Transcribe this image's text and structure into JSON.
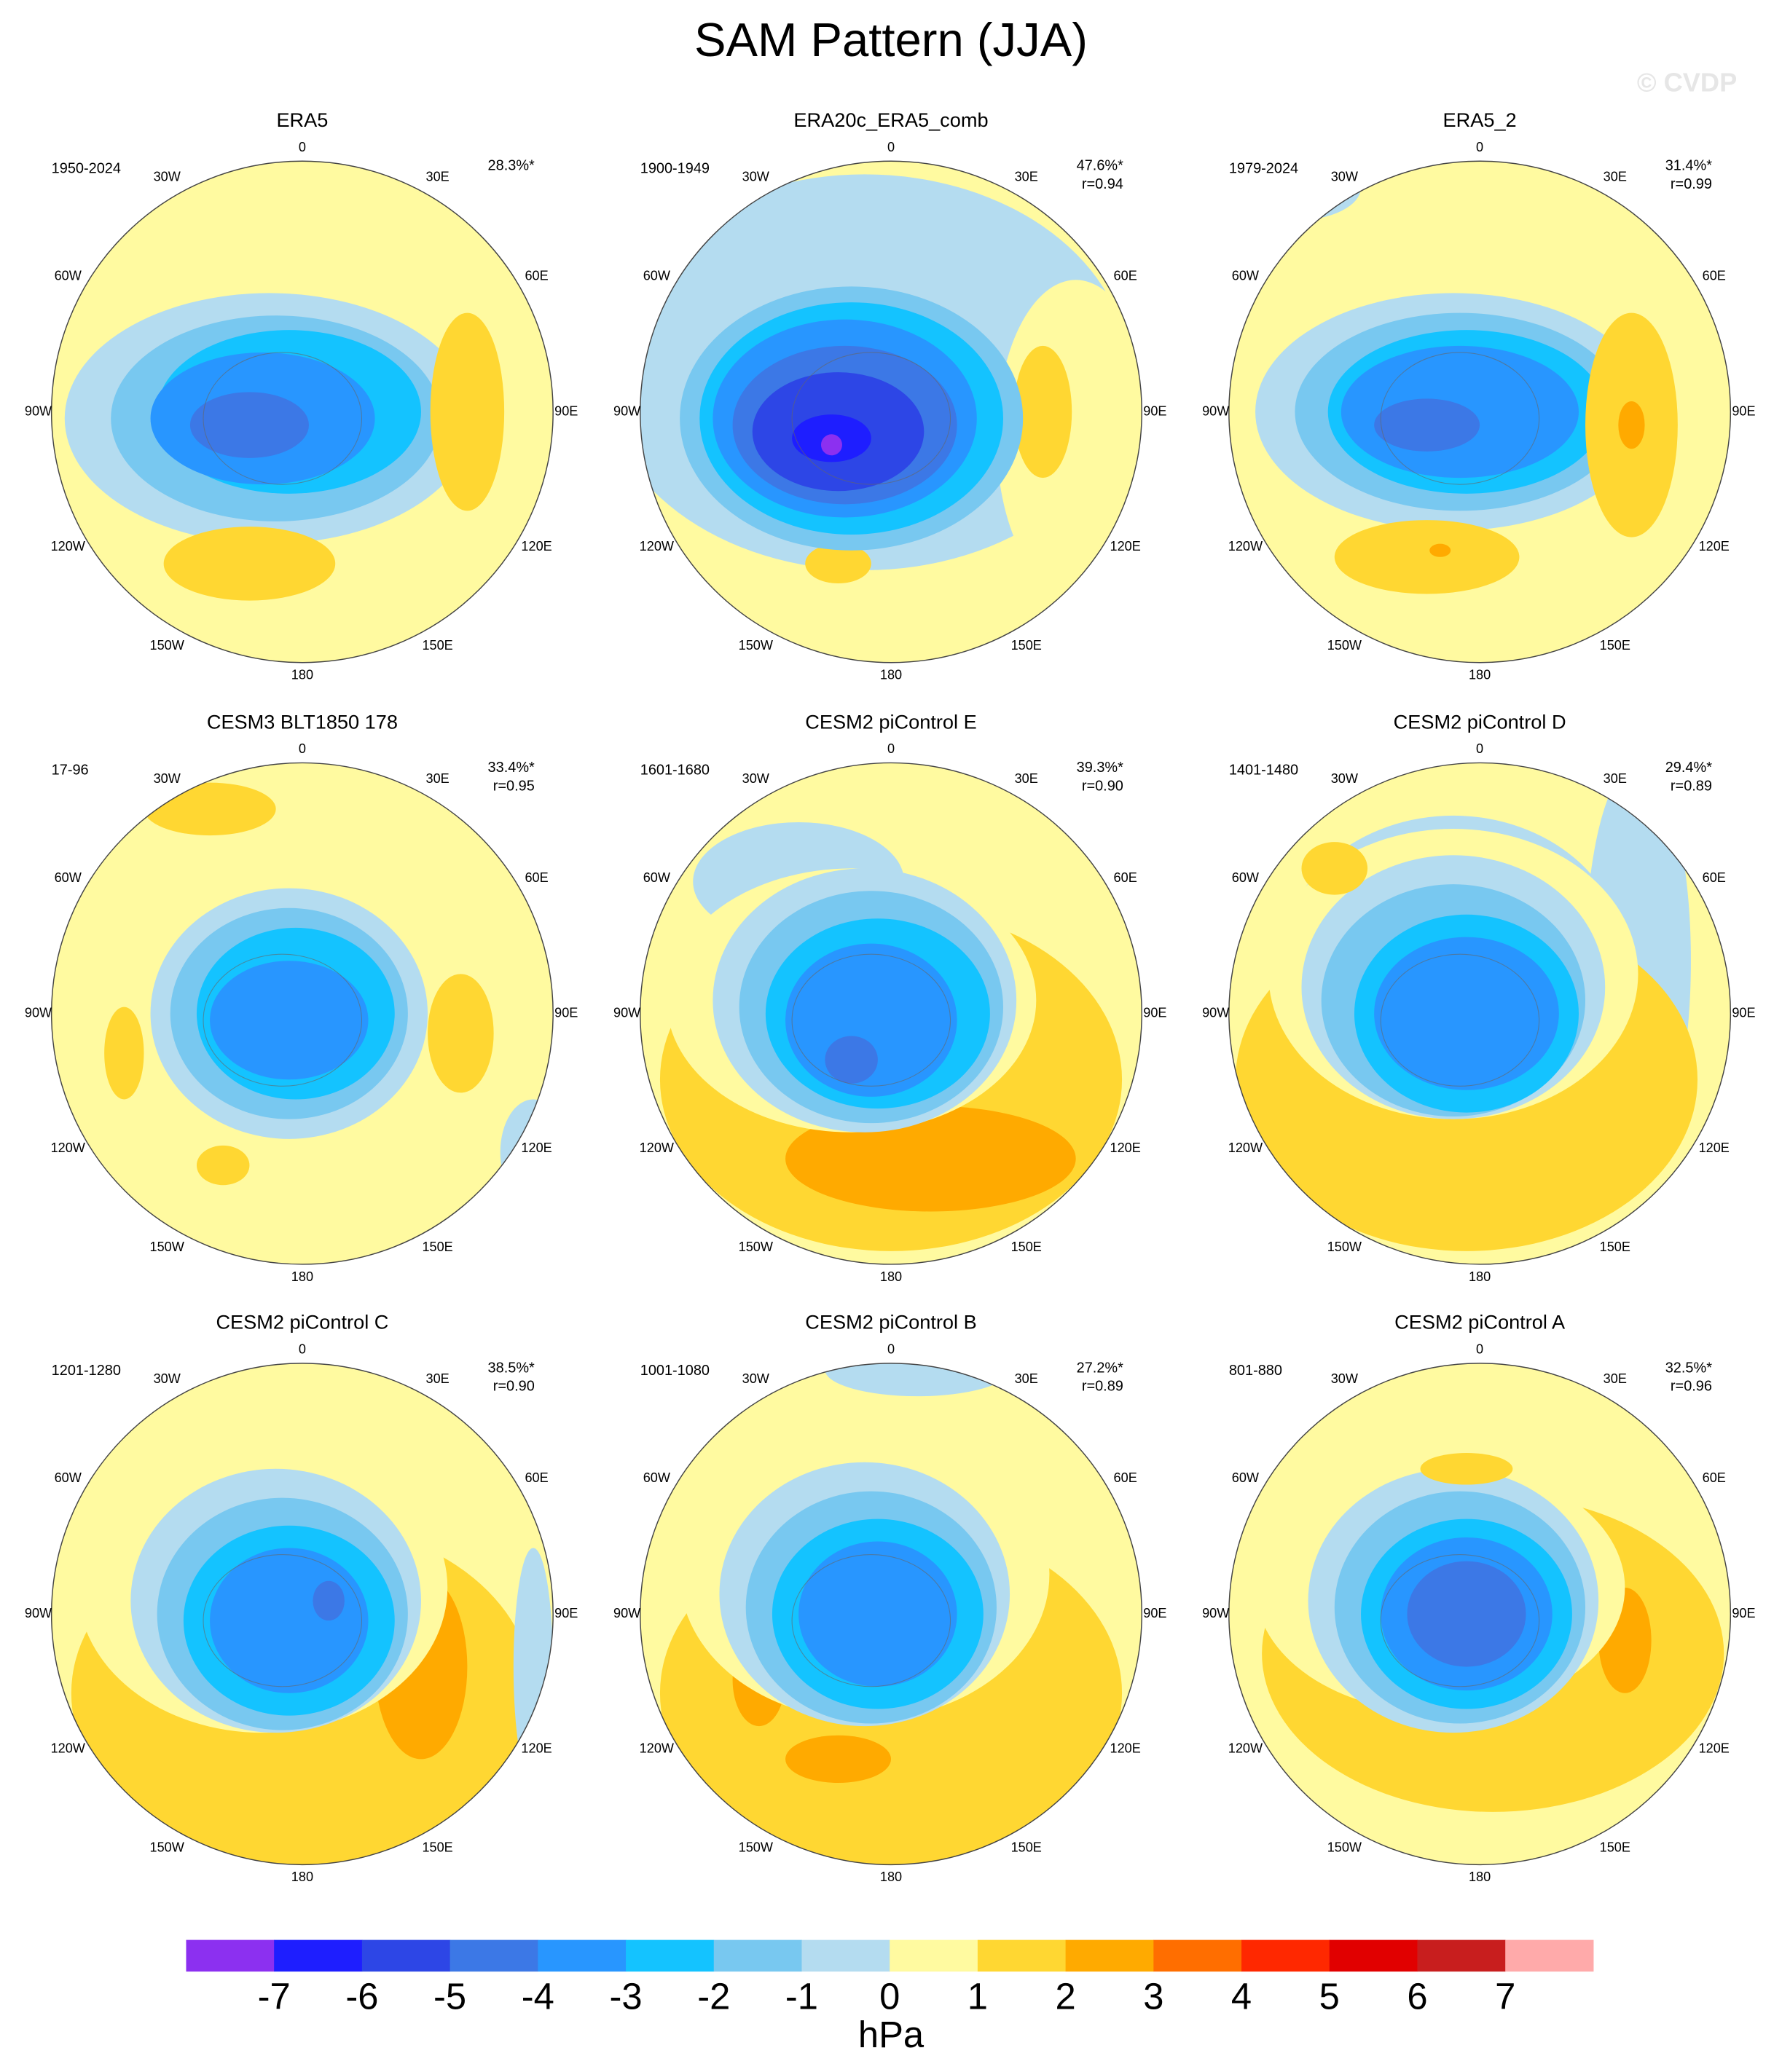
{
  "title": "SAM Pattern (JJA)",
  "watermark": "© CVDP",
  "panels": [
    {
      "title": "ERA5",
      "period": "1950-2024",
      "variance": "28.3%*"
    },
    {
      "title": "ERA20c_ERA5_comb",
      "period": "1900-1949",
      "variance": "47.6%*",
      "r": "r=0.94"
    },
    {
      "title": "ERA5_2",
      "period": "1979-2024",
      "variance": "31.4%*",
      "r": "r=0.99"
    },
    {
      "title": "CESM3 BLT1850 178",
      "period": "17-96",
      "variance": "33.4%*",
      "r": "r=0.95"
    },
    {
      "title": "CESM2 piControl E",
      "period": "1601-1680",
      "variance": "39.3%*",
      "r": "r=0.90"
    },
    {
      "title": "CESM2 piControl D",
      "period": "1401-1480",
      "variance": "29.4%*",
      "r": "r=0.89"
    },
    {
      "title": "CESM2 piControl C",
      "period": "1201-1280",
      "variance": "38.5%*",
      "r": "r=0.90"
    },
    {
      "title": "CESM2 piControl B",
      "period": "1001-1080",
      "variance": "27.2%*",
      "r": "r=0.89"
    },
    {
      "title": "CESM2 piControl A",
      "period": "801-880",
      "variance": "32.5%*",
      "r": "r=0.96"
    }
  ],
  "longitude_labels": [
    "0",
    "30E",
    "60E",
    "90E",
    "120E",
    "150E",
    "180",
    "150W",
    "120W",
    "90W",
    "60W",
    "30W"
  ],
  "colorbar": {
    "colors": [
      "#8c30f0",
      "#1e1eff",
      "#2d46e6",
      "#3c78e6",
      "#2896ff",
      "#14c3ff",
      "#78c8f0",
      "#b4dcf0",
      "#fffaa0",
      "#ffd732",
      "#ffaa00",
      "#ff6e00",
      "#ff2800",
      "#e10000",
      "#c81e1e",
      "#ffaaaa"
    ],
    "ticks": [
      -7,
      -6,
      -5,
      -4,
      -3,
      -2,
      -1,
      0,
      1,
      2,
      3,
      4,
      5,
      6,
      7
    ],
    "units": "hPa"
  }
}
